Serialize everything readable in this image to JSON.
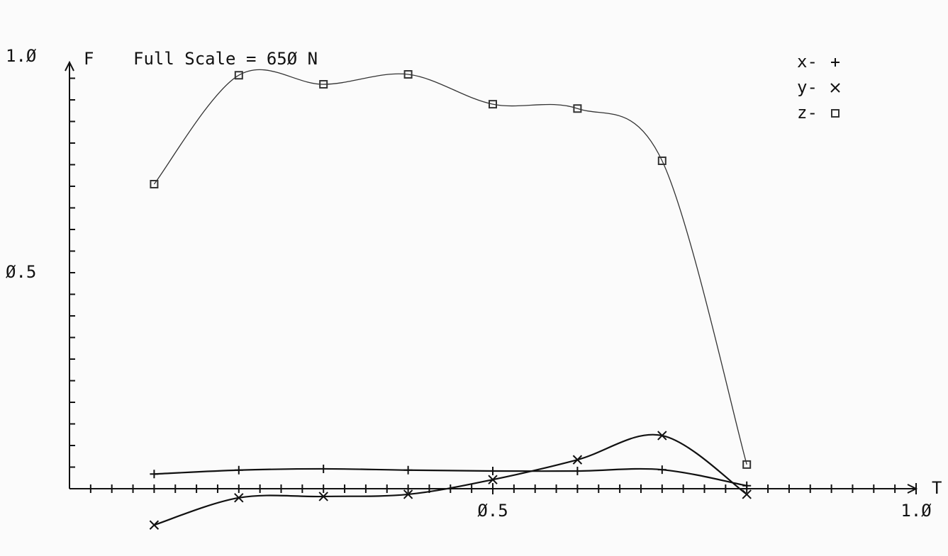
{
  "chart_data": {
    "type": "line",
    "title": "Full Scale = 65Ø N",
    "y_label": "F",
    "x_label": "T",
    "x": [
      0.1,
      0.2,
      0.3,
      0.4,
      0.5,
      0.6,
      0.7,
      0.8
    ],
    "series": [
      {
        "name": "x-",
        "marker": "plus",
        "color": "#111111",
        "values": [
          0.034,
          0.043,
          0.046,
          0.043,
          0.041,
          0.041,
          0.044,
          0.007
        ]
      },
      {
        "name": "y-",
        "marker": "cross",
        "color": "#111111",
        "values": [
          -0.084,
          -0.021,
          -0.018,
          -0.013,
          0.021,
          0.067,
          0.123,
          -0.013
        ]
      },
      {
        "name": "z-",
        "marker": "square",
        "color": "#333333",
        "values": [
          0.705,
          0.957,
          0.936,
          0.959,
          0.89,
          0.88,
          0.759,
          0.056
        ]
      }
    ],
    "xlim": [
      0,
      1.0
    ],
    "ylim": [
      -0.156,
      1.0
    ],
    "xticks": [
      {
        "value": 0.5,
        "label": "Ø.5"
      },
      {
        "value": 1.0,
        "label": "1.Ø"
      }
    ],
    "yticks": [
      {
        "value": 0.5,
        "label": "Ø.5"
      },
      {
        "value": 1.0,
        "label": "1.Ø"
      }
    ],
    "xminorticks": [
      0.025,
      0.05,
      0.075,
      0.1,
      0.125,
      0.15,
      0.175,
      0.2,
      0.225,
      0.25,
      0.275,
      0.3,
      0.325,
      0.35,
      0.375,
      0.4,
      0.425,
      0.45,
      0.475,
      0.5,
      0.525,
      0.55,
      0.575,
      0.6,
      0.625,
      0.65,
      0.675,
      0.7,
      0.725,
      0.75,
      0.775,
      0.8,
      0.825,
      0.85,
      0.875,
      0.9,
      0.925,
      0.95,
      0.975
    ],
    "yminorticks": [
      0.05,
      0.1,
      0.15,
      0.2,
      0.25,
      0.3,
      0.35,
      0.4,
      0.45,
      0.5,
      0.55,
      0.6,
      0.65,
      0.7,
      0.75,
      0.8,
      0.85,
      0.9,
      0.95
    ],
    "legend_position": "upper right",
    "grid": false
  }
}
